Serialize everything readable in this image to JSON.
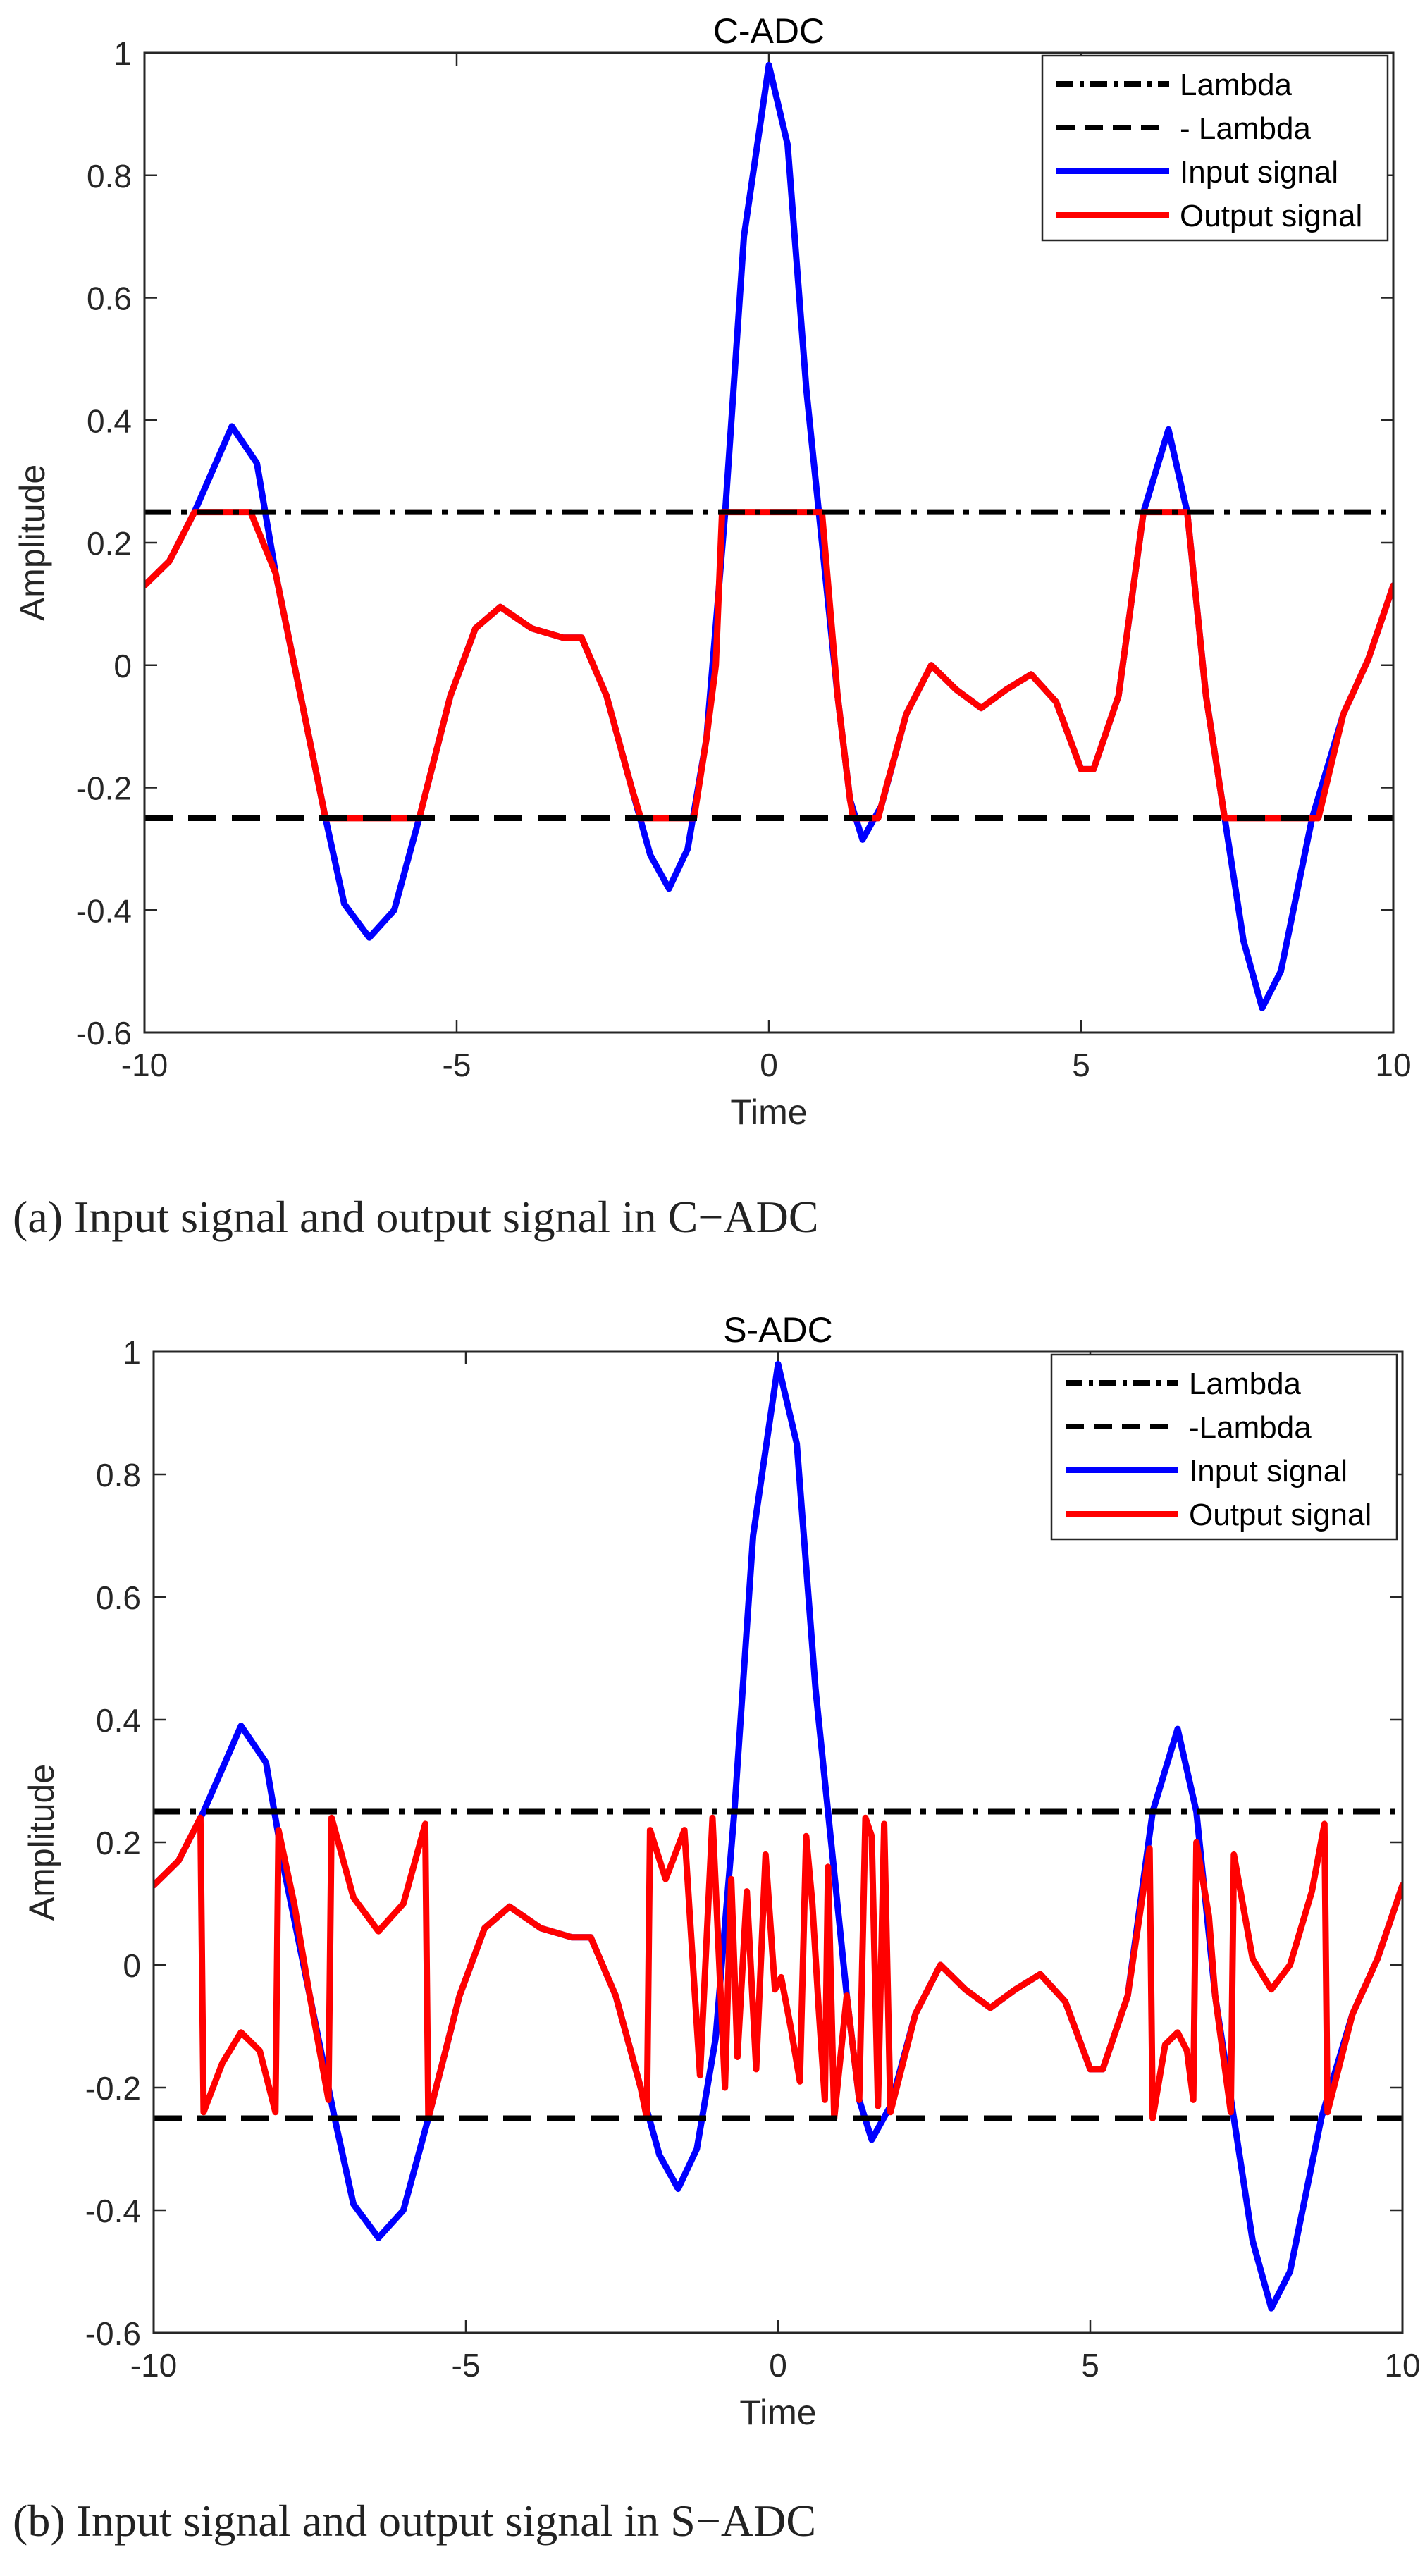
{
  "captions": {
    "a": "(a)  Input signal and output signal in C−ADC",
    "b": "(b)  Input signal and output signal in S−ADC"
  },
  "colors": {
    "input": "#0000ff",
    "output": "#ff0000",
    "threshold": "#000000",
    "axis": "#262626"
  },
  "chart_data": [
    {
      "type": "line",
      "title": "C-ADC",
      "xlabel": "Time",
      "ylabel": "Amplitude",
      "xlim": [
        -10,
        10
      ],
      "ylim": [
        -0.6,
        1
      ],
      "xticks": [
        -10,
        -5,
        0,
        5,
        10
      ],
      "xtick_labels": [
        "-10",
        "-5",
        "0",
        "5",
        "10"
      ],
      "yticks": [
        -0.6,
        -0.4,
        -0.2,
        0,
        0.2,
        0.4,
        0.6,
        0.8,
        1
      ],
      "ytick_labels": [
        "-0.6",
        "-0.4",
        "-0.2",
        "0",
        "0.2",
        "0.4",
        "0.6",
        "0.8",
        "1"
      ],
      "legend_position": "top-right",
      "legend": [
        "Lambda",
        "- Lambda",
        "Input signal",
        "Output signal"
      ],
      "lambda": 0.25,
      "input_points": [
        [
          -10,
          0.13
        ],
        [
          -9.6,
          0.17
        ],
        [
          -9.2,
          0.25
        ],
        [
          -8.6,
          0.39
        ],
        [
          -8.2,
          0.33
        ],
        [
          -7.9,
          0.15
        ],
        [
          -7.5,
          -0.05
        ],
        [
          -7.1,
          -0.25
        ],
        [
          -6.8,
          -0.39
        ],
        [
          -6.4,
          -0.445
        ],
        [
          -6.0,
          -0.4
        ],
        [
          -5.6,
          -0.25
        ],
        [
          -5.1,
          -0.05
        ],
        [
          -4.7,
          0.06
        ],
        [
          -4.3,
          0.095
        ],
        [
          -3.8,
          0.06
        ],
        [
          -3.3,
          0.045
        ],
        [
          -3.0,
          0.045
        ],
        [
          -2.6,
          -0.05
        ],
        [
          -2.2,
          -0.2
        ],
        [
          -1.9,
          -0.31
        ],
        [
          -1.6,
          -0.365
        ],
        [
          -1.3,
          -0.3
        ],
        [
          -1.0,
          -0.12
        ],
        [
          -0.7,
          0.25
        ],
        [
          -0.4,
          0.7
        ],
        [
          0,
          0.98
        ],
        [
          0.3,
          0.85
        ],
        [
          0.6,
          0.45
        ],
        [
          0.8,
          0.25
        ],
        [
          1.1,
          -0.05
        ],
        [
          1.3,
          -0.22
        ],
        [
          1.5,
          -0.285
        ],
        [
          1.8,
          -0.23
        ],
        [
          2.2,
          -0.08
        ],
        [
          2.6,
          0
        ],
        [
          3.0,
          -0.04
        ],
        [
          3.4,
          -0.07
        ],
        [
          3.8,
          -0.04
        ],
        [
          4.2,
          -0.015
        ],
        [
          4.6,
          -0.06
        ],
        [
          5.0,
          -0.17
        ],
        [
          5.2,
          -0.17
        ],
        [
          5.6,
          -0.05
        ],
        [
          6.0,
          0.25
        ],
        [
          6.4,
          0.385
        ],
        [
          6.7,
          0.25
        ],
        [
          7.0,
          -0.05
        ],
        [
          7.3,
          -0.25
        ],
        [
          7.6,
          -0.45
        ],
        [
          7.9,
          -0.56
        ],
        [
          8.2,
          -0.5
        ],
        [
          8.7,
          -0.25
        ],
        [
          9.2,
          -0.08
        ],
        [
          9.6,
          0.01
        ],
        [
          10,
          0.13
        ]
      ],
      "output_points": [
        [
          -10,
          0.13
        ],
        [
          -9.6,
          0.17
        ],
        [
          -9.2,
          0.25
        ],
        [
          -8.3,
          0.25
        ],
        [
          -7.9,
          0.15
        ],
        [
          -7.5,
          -0.05
        ],
        [
          -7.1,
          -0.25
        ],
        [
          -5.6,
          -0.25
        ],
        [
          -5.1,
          -0.05
        ],
        [
          -4.7,
          0.06
        ],
        [
          -4.3,
          0.095
        ],
        [
          -3.8,
          0.06
        ],
        [
          -3.3,
          0.045
        ],
        [
          -3.0,
          0.045
        ],
        [
          -2.6,
          -0.05
        ],
        [
          -2.2,
          -0.2
        ],
        [
          -2.05,
          -0.25
        ],
        [
          -1.2,
          -0.25
        ],
        [
          -1.0,
          -0.12
        ],
        [
          -0.85,
          0.0
        ],
        [
          -0.75,
          0.25
        ],
        [
          0.85,
          0.25
        ],
        [
          1.1,
          -0.05
        ],
        [
          1.3,
          -0.22
        ],
        [
          1.35,
          -0.25
        ],
        [
          1.75,
          -0.25
        ],
        [
          1.85,
          -0.21
        ],
        [
          2.2,
          -0.08
        ],
        [
          2.6,
          0
        ],
        [
          3.0,
          -0.04
        ],
        [
          3.4,
          -0.07
        ],
        [
          3.8,
          -0.04
        ],
        [
          4.2,
          -0.015
        ],
        [
          4.6,
          -0.06
        ],
        [
          5.0,
          -0.17
        ],
        [
          5.2,
          -0.17
        ],
        [
          5.6,
          -0.05
        ],
        [
          6.0,
          0.25
        ],
        [
          6.7,
          0.25
        ],
        [
          7.0,
          -0.05
        ],
        [
          7.3,
          -0.25
        ],
        [
          8.8,
          -0.25
        ],
        [
          9.2,
          -0.08
        ],
        [
          9.6,
          0.01
        ],
        [
          10,
          0.13
        ]
      ]
    },
    {
      "type": "line",
      "title": "S-ADC",
      "xlabel": "Time",
      "ylabel": "Amplitude",
      "xlim": [
        -10,
        10
      ],
      "ylim": [
        -0.6,
        1
      ],
      "xticks": [
        -10,
        -5,
        0,
        5,
        10
      ],
      "xtick_labels": [
        "-10",
        "-5",
        "0",
        "5",
        "10"
      ],
      "yticks": [
        -0.6,
        -0.4,
        -0.2,
        0,
        0.2,
        0.4,
        0.6,
        0.8,
        1
      ],
      "ytick_labels": [
        "-0.6",
        "-0.4",
        "-0.2",
        "0",
        "0.2",
        "0.4",
        "0.6",
        "0.8",
        "1"
      ],
      "legend_position": "top-right",
      "legend": [
        "Lambda",
        "-Lambda",
        "Input signal",
        "Output signal"
      ],
      "lambda": 0.25,
      "input_points": [
        [
          -10,
          0.13
        ],
        [
          -9.6,
          0.17
        ],
        [
          -9.2,
          0.25
        ],
        [
          -8.6,
          0.39
        ],
        [
          -8.2,
          0.33
        ],
        [
          -7.9,
          0.15
        ],
        [
          -7.5,
          -0.05
        ],
        [
          -7.1,
          -0.25
        ],
        [
          -6.8,
          -0.39
        ],
        [
          -6.4,
          -0.445
        ],
        [
          -6.0,
          -0.4
        ],
        [
          -5.6,
          -0.25
        ],
        [
          -5.1,
          -0.05
        ],
        [
          -4.7,
          0.06
        ],
        [
          -4.3,
          0.095
        ],
        [
          -3.8,
          0.06
        ],
        [
          -3.3,
          0.045
        ],
        [
          -3.0,
          0.045
        ],
        [
          -2.6,
          -0.05
        ],
        [
          -2.2,
          -0.2
        ],
        [
          -1.9,
          -0.31
        ],
        [
          -1.6,
          -0.365
        ],
        [
          -1.3,
          -0.3
        ],
        [
          -1.0,
          -0.12
        ],
        [
          -0.7,
          0.25
        ],
        [
          -0.4,
          0.7
        ],
        [
          0,
          0.98
        ],
        [
          0.3,
          0.85
        ],
        [
          0.6,
          0.45
        ],
        [
          0.8,
          0.25
        ],
        [
          1.1,
          -0.05
        ],
        [
          1.3,
          -0.22
        ],
        [
          1.5,
          -0.285
        ],
        [
          1.8,
          -0.23
        ],
        [
          2.2,
          -0.08
        ],
        [
          2.6,
          0
        ],
        [
          3.0,
          -0.04
        ],
        [
          3.4,
          -0.07
        ],
        [
          3.8,
          -0.04
        ],
        [
          4.2,
          -0.015
        ],
        [
          4.6,
          -0.06
        ],
        [
          5.0,
          -0.17
        ],
        [
          5.2,
          -0.17
        ],
        [
          5.6,
          -0.05
        ],
        [
          6.0,
          0.25
        ],
        [
          6.4,
          0.385
        ],
        [
          6.7,
          0.25
        ],
        [
          7.0,
          -0.05
        ],
        [
          7.3,
          -0.25
        ],
        [
          7.6,
          -0.45
        ],
        [
          7.9,
          -0.56
        ],
        [
          8.2,
          -0.5
        ],
        [
          8.7,
          -0.25
        ],
        [
          9.2,
          -0.08
        ],
        [
          9.6,
          0.01
        ],
        [
          10,
          0.13
        ]
      ],
      "output_points": [
        [
          -10,
          0.13
        ],
        [
          -9.6,
          0.17
        ],
        [
          -9.25,
          0.24
        ],
        [
          -9.2,
          -0.24
        ],
        [
          -8.9,
          -0.16
        ],
        [
          -8.6,
          -0.11
        ],
        [
          -8.3,
          -0.14
        ],
        [
          -8.05,
          -0.24
        ],
        [
          -8.0,
          0.22
        ],
        [
          -7.75,
          0.1
        ],
        [
          -7.5,
          -0.05
        ],
        [
          -7.2,
          -0.22
        ],
        [
          -7.15,
          0.24
        ],
        [
          -6.8,
          0.11
        ],
        [
          -6.4,
          0.055
        ],
        [
          -6.0,
          0.1
        ],
        [
          -5.65,
          0.23
        ],
        [
          -5.6,
          -0.25
        ],
        [
          -5.1,
          -0.05
        ],
        [
          -4.7,
          0.06
        ],
        [
          -4.3,
          0.095
        ],
        [
          -3.8,
          0.06
        ],
        [
          -3.3,
          0.045
        ],
        [
          -3.0,
          0.045
        ],
        [
          -2.6,
          -0.05
        ],
        [
          -2.2,
          -0.2
        ],
        [
          -2.1,
          -0.25
        ],
        [
          -2.05,
          0.22
        ],
        [
          -1.8,
          0.14
        ],
        [
          -1.5,
          0.22
        ],
        [
          -1.25,
          -0.18
        ],
        [
          -1.05,
          0.24
        ],
        [
          -0.85,
          -0.2
        ],
        [
          -0.75,
          0.14
        ],
        [
          -0.65,
          -0.15
        ],
        [
          -0.5,
          0.12
        ],
        [
          -0.35,
          -0.17
        ],
        [
          -0.2,
          0.18
        ],
        [
          -0.05,
          -0.04
        ],
        [
          0.05,
          -0.02
        ],
        [
          0.2,
          -0.1
        ],
        [
          0.35,
          -0.19
        ],
        [
          0.45,
          0.21
        ],
        [
          0.55,
          0.1
        ],
        [
          0.65,
          -0.07
        ],
        [
          0.75,
          -0.22
        ],
        [
          0.8,
          0.16
        ],
        [
          0.9,
          -0.25
        ],
        [
          1.1,
          -0.05
        ],
        [
          1.3,
          -0.22
        ],
        [
          1.4,
          0.24
        ],
        [
          1.5,
          0.21
        ],
        [
          1.6,
          -0.23
        ],
        [
          1.7,
          0.23
        ],
        [
          1.8,
          -0.24
        ],
        [
          2.2,
          -0.08
        ],
        [
          2.6,
          0
        ],
        [
          3.0,
          -0.04
        ],
        [
          3.4,
          -0.07
        ],
        [
          3.8,
          -0.04
        ],
        [
          4.2,
          -0.015
        ],
        [
          4.6,
          -0.06
        ],
        [
          5.0,
          -0.17
        ],
        [
          5.2,
          -0.17
        ],
        [
          5.6,
          -0.05
        ],
        [
          5.95,
          0.19
        ],
        [
          6.0,
          -0.25
        ],
        [
          6.2,
          -0.13
        ],
        [
          6.4,
          -0.11
        ],
        [
          6.55,
          -0.14
        ],
        [
          6.65,
          -0.22
        ],
        [
          6.7,
          0.2
        ],
        [
          6.9,
          0.08
        ],
        [
          7.0,
          -0.05
        ],
        [
          7.25,
          -0.24
        ],
        [
          7.3,
          0.18
        ],
        [
          7.6,
          0.01
        ],
        [
          7.9,
          -0.04
        ],
        [
          8.2,
          0.0
        ],
        [
          8.55,
          0.12
        ],
        [
          8.75,
          0.23
        ],
        [
          8.8,
          -0.24
        ],
        [
          9.2,
          -0.08
        ],
        [
          9.6,
          0.01
        ],
        [
          10,
          0.13
        ]
      ]
    }
  ]
}
